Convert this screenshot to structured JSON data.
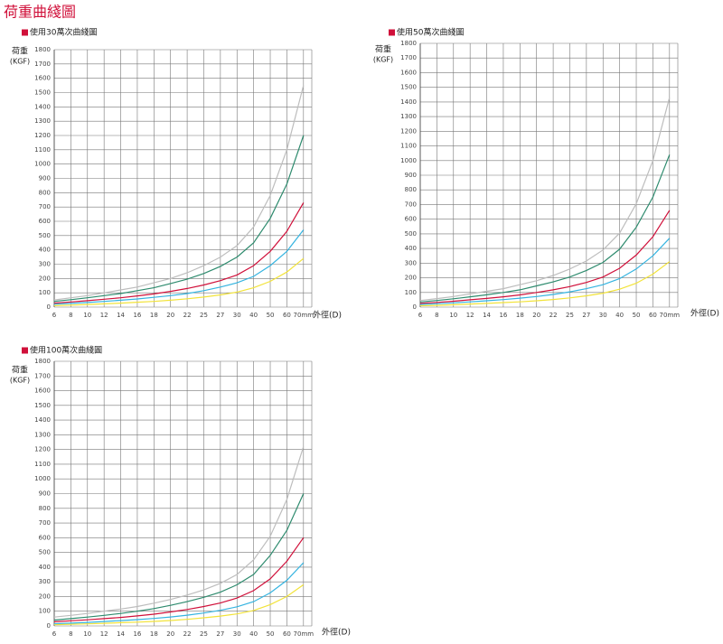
{
  "page_title": "荷重曲綫圖",
  "chart_data": [
    {
      "type": "line",
      "title": "使用30萬次曲綫圖",
      "ylabel": "荷重",
      "yunit": "(KGF)",
      "xlabel": "外徑(D)",
      "categories": [
        "6",
        "8",
        "10",
        "12",
        "14",
        "16",
        "18",
        "20",
        "22",
        "25",
        "27",
        "30",
        "40",
        "50",
        "60",
        "70mm"
      ],
      "ylim": [
        0,
        1800
      ],
      "yticks": [
        0,
        100,
        200,
        300,
        400,
        500,
        600,
        700,
        800,
        900,
        1000,
        1100,
        1200,
        1300,
        1400,
        1500,
        1600,
        1700,
        1800
      ],
      "grid": true,
      "series": [
        {
          "color": "#bdbdbd",
          "values": [
            50,
            65,
            80,
            100,
            120,
            140,
            170,
            200,
            240,
            290,
            350,
            430,
            560,
            780,
            1100,
            1550
          ]
        },
        {
          "color": "#2e8b6e",
          "values": [
            40,
            52,
            65,
            80,
            95,
            115,
            135,
            165,
            195,
            235,
            285,
            350,
            450,
            620,
            860,
            1200
          ]
        },
        {
          "color": "#d0103a",
          "values": [
            28,
            36,
            45,
            55,
            65,
            78,
            92,
            110,
            130,
            155,
            185,
            225,
            290,
            390,
            530,
            730
          ]
        },
        {
          "color": "#35b4e0",
          "values": [
            20,
            26,
            32,
            40,
            48,
            57,
            68,
            80,
            95,
            115,
            140,
            170,
            215,
            290,
            390,
            540
          ]
        },
        {
          "color": "#f2e33a",
          "values": [
            10,
            14,
            18,
            23,
            28,
            34,
            40,
            48,
            58,
            70,
            85,
            105,
            135,
            180,
            245,
            340
          ]
        }
      ]
    },
    {
      "type": "line",
      "title": "使用50萬次曲綫圖",
      "ylabel": "荷重",
      "yunit": "(KGF)",
      "xlabel": "外徑(D)",
      "categories": [
        "6",
        "8",
        "10",
        "12",
        "14",
        "16",
        "18",
        "20",
        "22",
        "25",
        "27",
        "30",
        "40",
        "50",
        "60",
        "70mm"
      ],
      "ylim": [
        0,
        1800
      ],
      "yticks": [
        0,
        100,
        200,
        300,
        400,
        500,
        600,
        700,
        800,
        900,
        1000,
        1100,
        1200,
        1300,
        1400,
        1500,
        1600,
        1700,
        1800
      ],
      "grid": true,
      "series": [
        {
          "color": "#bdbdbd",
          "values": [
            45,
            58,
            72,
            90,
            108,
            126,
            153,
            180,
            216,
            260,
            315,
            390,
            505,
            705,
            1000,
            1430
          ]
        },
        {
          "color": "#2e8b6e",
          "values": [
            35,
            45,
            57,
            70,
            84,
            100,
            118,
            145,
            172,
            205,
            250,
            305,
            395,
            545,
            750,
            1040
          ]
        },
        {
          "color": "#d0103a",
          "values": [
            25,
            32,
            40,
            50,
            59,
            70,
            83,
            100,
            118,
            140,
            168,
            205,
            265,
            355,
            480,
            660
          ]
        },
        {
          "color": "#35b4e0",
          "values": [
            18,
            23,
            29,
            36,
            43,
            51,
            61,
            72,
            86,
            104,
            126,
            153,
            194,
            260,
            350,
            470
          ]
        },
        {
          "color": "#f2e33a",
          "values": [
            9,
            12,
            16,
            21,
            25,
            31,
            36,
            43,
            52,
            63,
            77,
            95,
            122,
            163,
            225,
            310
          ]
        }
      ]
    },
    {
      "type": "line",
      "title": "使用100萬次曲綫圖",
      "ylabel": "荷重",
      "yunit": "(KGF)",
      "xlabel": "外徑(D)",
      "categories": [
        "6",
        "8",
        "10",
        "12",
        "14",
        "16",
        "18",
        "20",
        "22",
        "25",
        "27",
        "30",
        "40",
        "50",
        "60",
        "70mm"
      ],
      "ylim": [
        0,
        1800
      ],
      "yticks": [
        0,
        100,
        200,
        300,
        400,
        500,
        600,
        700,
        800,
        900,
        1000,
        1100,
        1200,
        1300,
        1400,
        1500,
        1600,
        1700,
        1800
      ],
      "grid": true,
      "series": [
        {
          "color": "#bdbdbd",
          "values": [
            60,
            72,
            85,
            100,
            115,
            132,
            155,
            180,
            210,
            245,
            290,
            350,
            450,
            610,
            860,
            1220
          ]
        },
        {
          "color": "#2e8b6e",
          "values": [
            40,
            50,
            60,
            72,
            85,
            100,
            118,
            140,
            165,
            195,
            230,
            280,
            350,
            480,
            650,
            900
          ]
        },
        {
          "color": "#d0103a",
          "values": [
            28,
            35,
            42,
            50,
            58,
            68,
            80,
            95,
            112,
            132,
            156,
            190,
            240,
            320,
            440,
            600
          ]
        },
        {
          "color": "#35b4e0",
          "values": [
            15,
            19,
            24,
            30,
            36,
            43,
            51,
            61,
            73,
            88,
            106,
            130,
            165,
            225,
            310,
            430
          ]
        },
        {
          "color": "#f2e33a",
          "values": [
            8,
            11,
            14,
            18,
            22,
            26,
            31,
            37,
            45,
            55,
            67,
            82,
            105,
            145,
            200,
            280
          ]
        }
      ]
    }
  ]
}
